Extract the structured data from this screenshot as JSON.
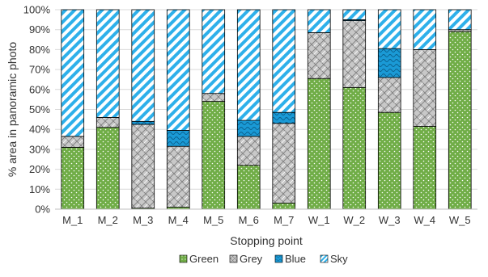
{
  "chart_data": {
    "type": "bar",
    "stacked": true,
    "title": "",
    "xlabel": "Stopping point",
    "ylabel": "% area in panoramic photo",
    "ylim": [
      0,
      100
    ],
    "yticks": [
      "0%",
      "10%",
      "20%",
      "30%",
      "40%",
      "50%",
      "60%",
      "70%",
      "80%",
      "90%",
      "100%"
    ],
    "categories": [
      "M_1",
      "M_2",
      "M_3",
      "M_4",
      "M_5",
      "M_6",
      "M_7",
      "W_1",
      "W_2",
      "W_3",
      "W_4",
      "W_5"
    ],
    "series": [
      {
        "name": "Green",
        "values": [
          31,
          41,
          0.5,
          1,
          54,
          22,
          3,
          65.5,
          61,
          48.5,
          41.5,
          89
        ],
        "color": "#70ad47",
        "pattern": "dots"
      },
      {
        "name": "Grey",
        "values": [
          5.5,
          5,
          42,
          30.5,
          4,
          14.5,
          40,
          23,
          33.5,
          17.5,
          38.5,
          1
        ],
        "color": "#bfbfbf",
        "pattern": "weave"
      },
      {
        "name": "Blue",
        "values": [
          0,
          0,
          1.5,
          8,
          0,
          8,
          5.5,
          0,
          0.5,
          14.5,
          0,
          0
        ],
        "color": "#1a9ad6",
        "pattern": "waves"
      },
      {
        "name": "Sky",
        "values": [
          63.5,
          54,
          56,
          60.5,
          42,
          55.5,
          51.5,
          11.5,
          5,
          19.5,
          20,
          10
        ],
        "color": "#2eb0ea",
        "pattern": "diagonal"
      }
    ],
    "legend_position": "bottom",
    "grid": "horizontal"
  }
}
